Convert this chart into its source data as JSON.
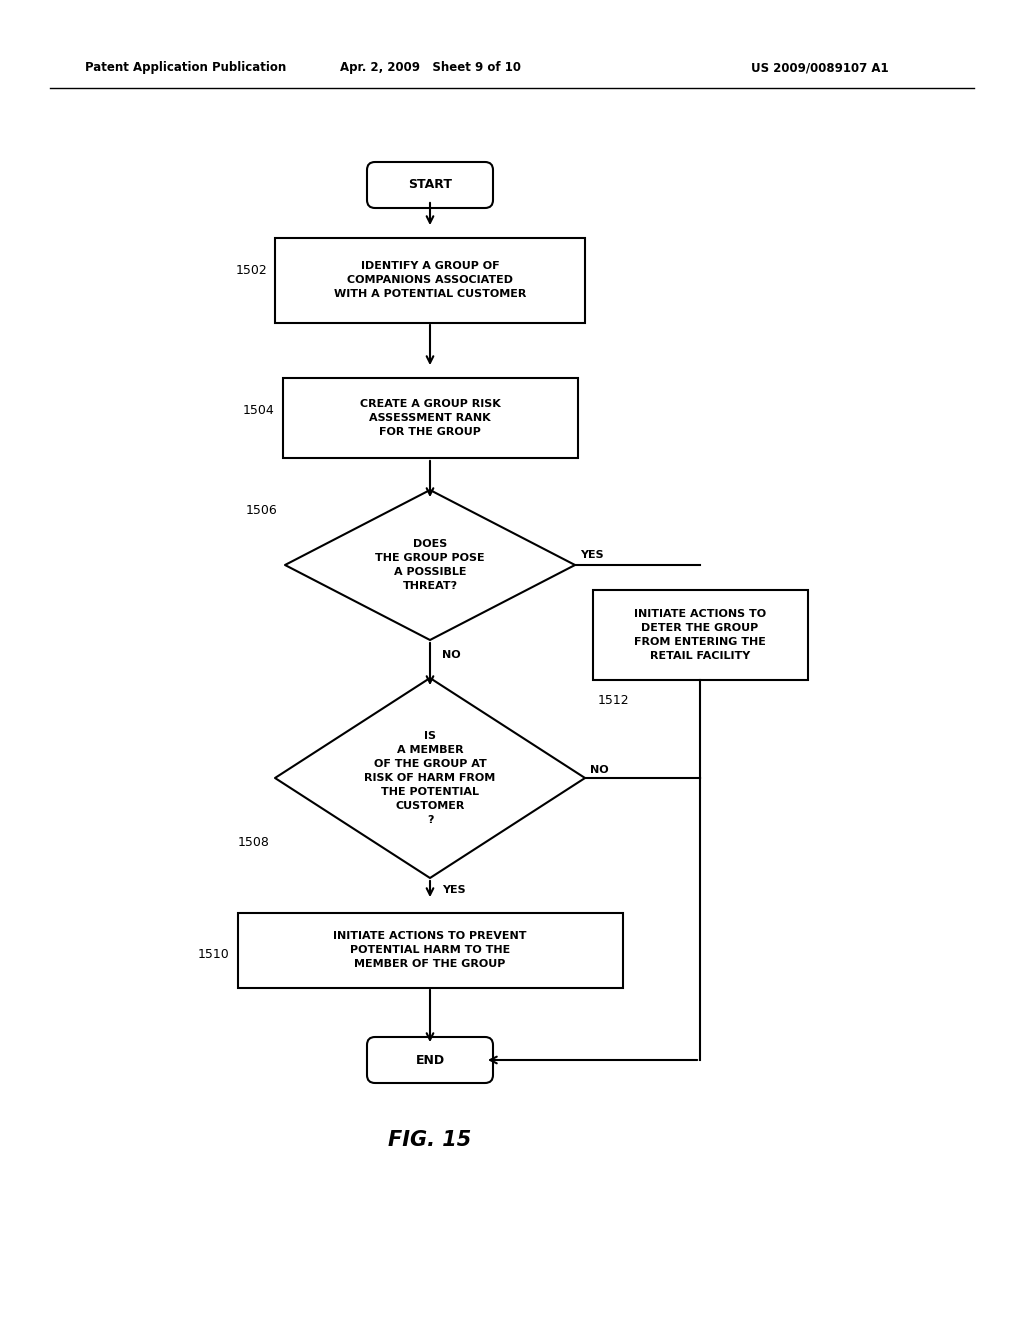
{
  "bg_color": "#ffffff",
  "header_left": "Patent Application Publication",
  "header_mid": "Apr. 2, 2009   Sheet 9 of 10",
  "header_right": "US 2009/0089107 A1",
  "figure_label": "FIG. 15",
  "line_width": 1.5,
  "font_size_node": 8,
  "font_size_header": 8.5,
  "font_size_label": 9,
  "font_size_fig": 15,
  "font_size_yesno": 8
}
